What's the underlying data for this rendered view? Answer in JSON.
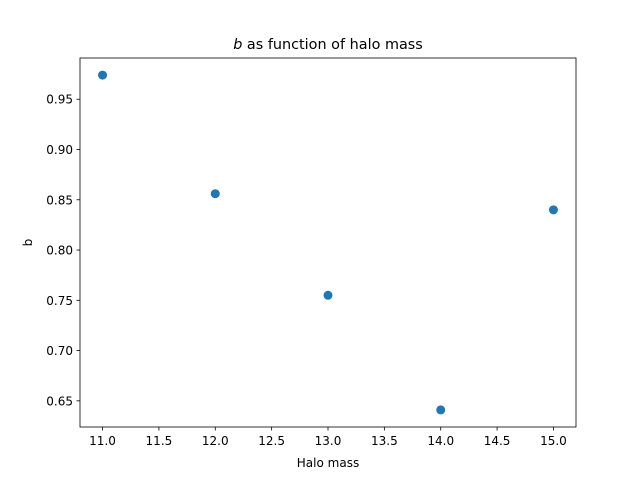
{
  "chart_data": {
    "type": "scatter",
    "title_var": "b",
    "title_rest": " as function of halo mass",
    "xlabel": "Halo mass",
    "ylabel": "b",
    "xlim": [
      10.8,
      15.2
    ],
    "ylim": [
      0.624,
      0.991
    ],
    "xticks": [
      11.0,
      11.5,
      12.0,
      12.5,
      13.0,
      13.5,
      14.0,
      14.5,
      15.0
    ],
    "xtick_labels": [
      "11.0",
      "11.5",
      "12.0",
      "12.5",
      "13.0",
      "13.5",
      "14.0",
      "14.5",
      "15.0"
    ],
    "yticks": [
      0.65,
      0.7,
      0.75,
      0.8,
      0.85,
      0.9,
      0.95
    ],
    "ytick_labels": [
      "0.65",
      "0.70",
      "0.75",
      "0.80",
      "0.85",
      "0.90",
      "0.95"
    ],
    "series": [
      {
        "x": [
          11.0,
          12.0,
          13.0,
          14.0,
          15.0
        ],
        "y": [
          0.974,
          0.856,
          0.755,
          0.641,
          0.84
        ],
        "color": "#1f77b4"
      }
    ],
    "grid": false,
    "legend": false
  }
}
